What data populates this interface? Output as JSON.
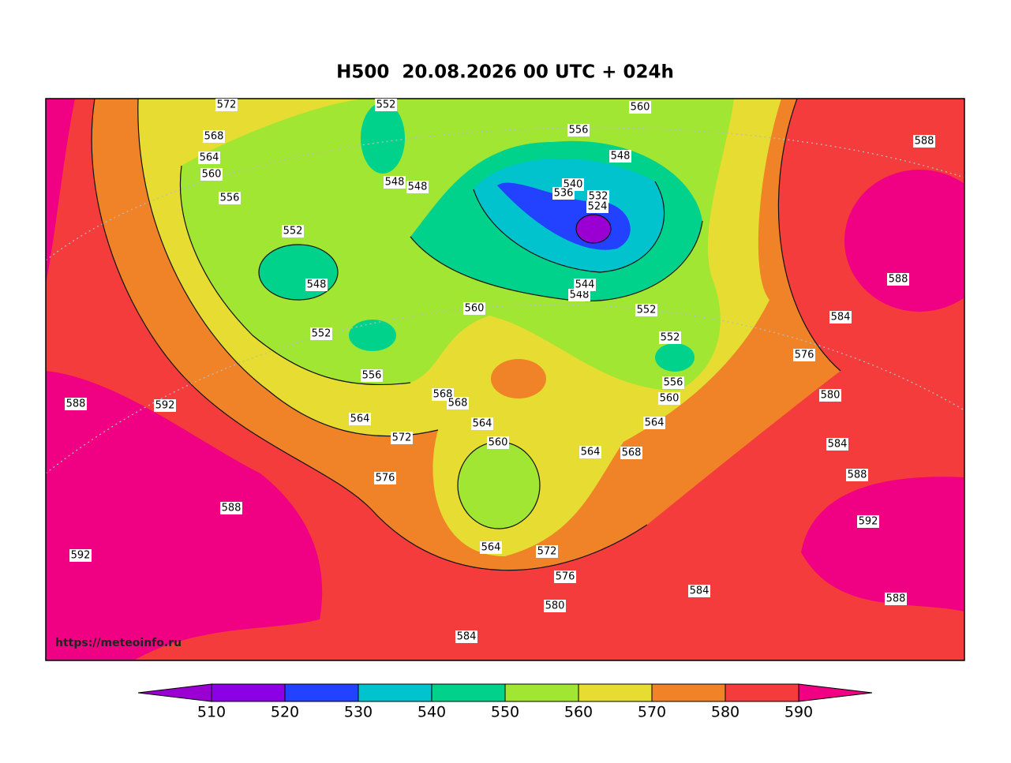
{
  "title": "H500  20.08.2026 00 UTC + 024h",
  "watermark": "https://meteoinfo.ru",
  "contour_labels": [
    572,
    552,
    560,
    568,
    556,
    564,
    548,
    560,
    556,
    548,
    548,
    540,
    536,
    532,
    524,
    552,
    548,
    548,
    544,
    560,
    552,
    552,
    552,
    556,
    556,
    568,
    568,
    560,
    564,
    564,
    564,
    572,
    560,
    564,
    568,
    576,
    588,
    588,
    584,
    576,
    580,
    584,
    588,
    592,
    588,
    592,
    588,
    592,
    564,
    572,
    576,
    580,
    584,
    588,
    584
  ],
  "colorbar": {
    "ticks": [
      510,
      520,
      530,
      540,
      550,
      560,
      570,
      580,
      590
    ],
    "colors": [
      "#9b00d2",
      "#8c00e6",
      "#2342ff",
      "#00c3cd",
      "#00d28c",
      "#a0e632",
      "#e6dc32",
      "#f08228",
      "#f53c3c",
      "#f00082"
    ]
  }
}
